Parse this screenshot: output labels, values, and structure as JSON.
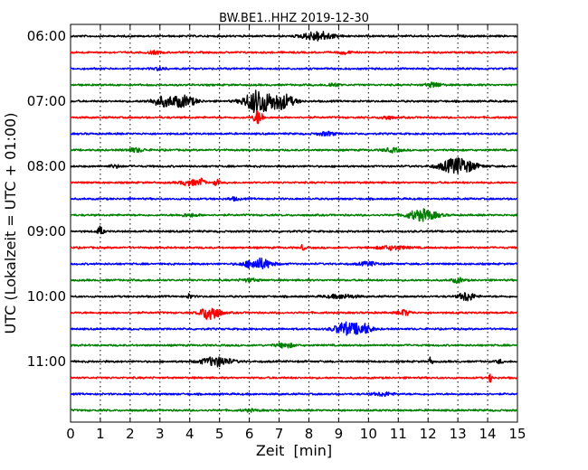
{
  "chart_data": {
    "type": "line",
    "title": "BW.BE1..HHZ 2019-12-30",
    "xlabel": "Zeit  [min]",
    "ylabel": "UTC (Lokalzeit = UTC + 01:00)",
    "xlim": [
      0,
      15
    ],
    "x_ticks": [
      "0",
      "1",
      "2",
      "3",
      "4",
      "5",
      "6",
      "7",
      "8",
      "9",
      "10",
      "11",
      "12",
      "13",
      "14",
      "15"
    ],
    "y_ticks": [
      "06:00",
      "07:00",
      "08:00",
      "09:00",
      "10:00",
      "11:00"
    ],
    "grid": "vertical dotted",
    "trace_minutes": 15,
    "trace_times": [
      "06:00",
      "06:15",
      "06:30",
      "06:45",
      "07:00",
      "07:15",
      "07:30",
      "07:45",
      "08:00",
      "08:15",
      "08:30",
      "08:45",
      "09:00",
      "09:15",
      "09:30",
      "09:45",
      "10:00",
      "10:15",
      "10:30",
      "10:45",
      "11:00",
      "11:15",
      "11:30",
      "11:45"
    ],
    "color_cycle": [
      "#000000",
      "#ff0000",
      "#0000ff",
      "#008000"
    ],
    "series": [
      {
        "values_note": "",
        "events": [
          [
            8.3,
            5,
            0.5
          ]
        ]
      },
      {
        "events": [
          [
            2.8,
            1.5,
            0.2
          ],
          [
            9.2,
            1.5,
            0.2
          ]
        ]
      },
      {
        "events": [
          [
            3.0,
            1.5,
            0.2
          ]
        ]
      },
      {
        "events": [
          [
            8.8,
            2,
            0.2
          ],
          [
            12.2,
            2.5,
            0.25
          ]
        ]
      },
      {
        "events": [
          [
            3.1,
            5,
            0.4
          ],
          [
            3.8,
            6,
            0.4
          ],
          [
            6.3,
            13,
            0.45
          ],
          [
            7.1,
            8,
            0.4
          ]
        ]
      },
      {
        "events": [
          [
            6.3,
            8,
            0.15
          ],
          [
            10.6,
            2,
            0.2
          ]
        ]
      },
      {
        "events": [
          [
            8.6,
            2,
            0.3
          ]
        ]
      },
      {
        "events": [
          [
            2.2,
            2,
            0.3
          ],
          [
            10.8,
            2,
            0.3
          ]
        ]
      },
      {
        "events": [
          [
            1.5,
            1.5,
            0.2
          ],
          [
            13.0,
            9,
            0.55
          ]
        ]
      },
      {
        "events": [
          [
            4.0,
            3,
            0.3
          ],
          [
            4.4,
            4,
            0.1
          ],
          [
            4.9,
            3,
            0.1
          ]
        ]
      },
      {
        "events": [
          [
            5.5,
            1.5,
            0.2
          ]
        ]
      },
      {
        "events": [
          [
            11.8,
            6,
            0.5
          ],
          [
            4.0,
            1.5,
            0.3
          ]
        ]
      },
      {
        "events": [
          [
            1.0,
            5,
            0.1
          ]
        ]
      },
      {
        "events": [
          [
            7.8,
            4,
            0.05
          ],
          [
            10.8,
            2,
            0.5
          ]
        ]
      },
      {
        "events": [
          [
            6.3,
            6,
            0.45
          ],
          [
            10.0,
            2,
            0.3
          ]
        ]
      },
      {
        "events": [
          [
            13.0,
            2.5,
            0.2
          ],
          [
            6.0,
            1.5,
            0.3
          ]
        ]
      },
      {
        "events": [
          [
            9.1,
            2,
            0.5
          ],
          [
            13.3,
            5,
            0.25
          ],
          [
            4.0,
            2.5,
            0.1
          ]
        ]
      },
      {
        "events": [
          [
            4.7,
            9,
            0.3
          ],
          [
            11.2,
            3,
            0.2
          ]
        ]
      },
      {
        "events": [
          [
            9.2,
            7,
            0.35
          ],
          [
            9.8,
            6,
            0.3
          ]
        ]
      },
      {
        "events": [
          [
            7.2,
            2.5,
            0.3
          ]
        ]
      },
      {
        "events": [
          [
            4.9,
            5,
            0.5
          ],
          [
            12.1,
            6,
            0.05
          ],
          [
            14.4,
            2,
            0.1
          ]
        ]
      },
      {
        "events": [
          [
            14.1,
            6,
            0.05
          ]
        ]
      },
      {
        "events": [
          [
            10.5,
            2,
            0.3
          ]
        ]
      },
      {
        "events": [
          [
            6.0,
            1,
            0.3
          ]
        ]
      }
    ]
  },
  "colors": {
    "background": "#ffffff",
    "axes": "#000000"
  }
}
